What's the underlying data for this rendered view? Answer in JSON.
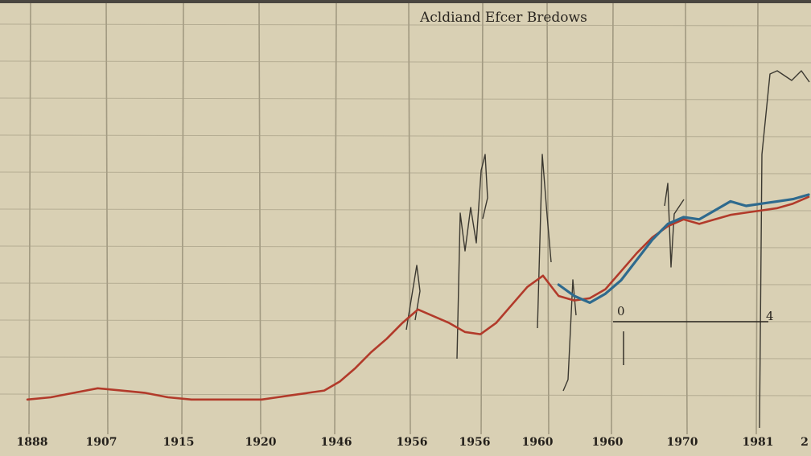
{
  "chart_data": {
    "type": "line",
    "title": "Acldiand Efcer Bredows",
    "xlabel": "",
    "ylabel": "",
    "x_ticks": [
      "1888",
      "1907",
      "1915",
      "1920",
      "1946",
      "1956",
      "1956",
      "1960",
      "1960",
      "1970",
      "1981",
      "2"
    ],
    "series": [
      {
        "name": "",
        "color": "#b23a2a",
        "x": [
          0,
          3,
          6,
          9,
          12,
          15,
          18,
          21,
          24,
          27,
          30,
          32,
          34,
          36,
          38,
          40,
          42,
          44,
          46,
          48,
          50,
          52,
          54,
          56,
          58,
          60,
          62,
          64,
          66,
          68,
          70,
          72,
          74,
          76,
          78,
          80,
          82,
          84,
          86,
          88,
          90,
          92,
          94,
          96,
          98,
          100
        ],
        "y": [
          4,
          5,
          7,
          9,
          8,
          7,
          5,
          4,
          4,
          4,
          4,
          5,
          6,
          7,
          8,
          12,
          18,
          25,
          31,
          38,
          44,
          41,
          38,
          34,
          33,
          38,
          46,
          54,
          59,
          50,
          48,
          49,
          53,
          61,
          69,
          76,
          81,
          84,
          82,
          84,
          86,
          87,
          88,
          89,
          91,
          94
        ]
      },
      {
        "name": "",
        "color": "#2e6a8e",
        "x": [
          68,
          70,
          72,
          74,
          76,
          78,
          80,
          82,
          84,
          86,
          88,
          90,
          92,
          94,
          96,
          98,
          100
        ],
        "y": [
          55,
          50,
          47,
          51,
          57,
          66,
          75,
          82,
          85,
          84,
          88,
          92,
          90,
          91,
          92,
          93,
          95
        ]
      }
    ],
    "ylim": [
      0,
      100
    ],
    "grid": true,
    "annotations": [
      "0",
      "4"
    ]
  }
}
